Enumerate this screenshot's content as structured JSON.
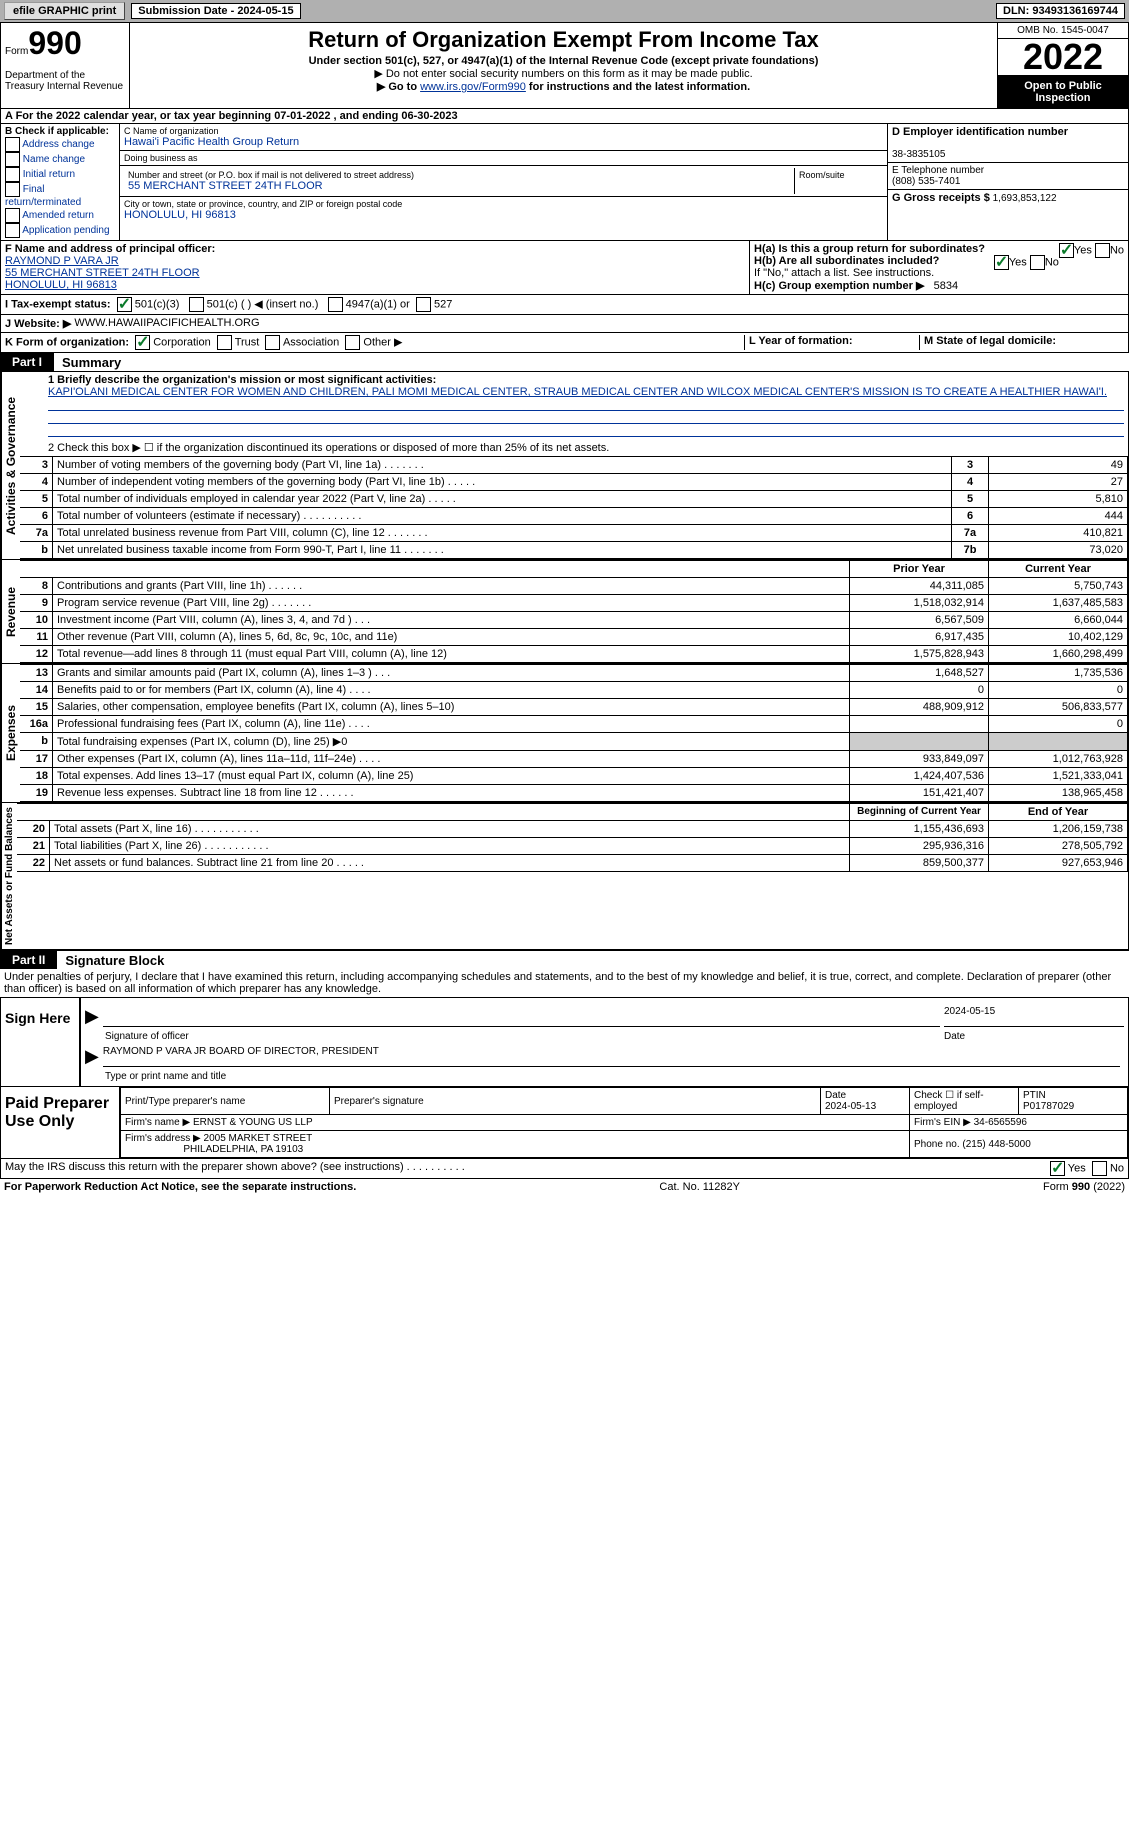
{
  "topbar": {
    "efile": "efile GRAPHIC print",
    "submission_label": "Submission Date - 2024-05-15",
    "dln": "DLN: 93493136169744"
  },
  "header": {
    "form_word": "Form",
    "form_num": "990",
    "dept": "Department of the Treasury\nInternal Revenue",
    "title": "Return of Organization Exempt From Income Tax",
    "subtitle": "Under section 501(c), 527, or 4947(a)(1) of the Internal Revenue Code (except private foundations)",
    "note1": "▶ Do not enter social security numbers on this form as it may be made public.",
    "note2_prefix": "▶ Go to ",
    "note2_link": "www.irs.gov/Form990",
    "note2_suffix": " for instructions and the latest information.",
    "omb": "OMB No. 1545-0047",
    "year": "2022",
    "open": "Open to Public Inspection"
  },
  "row_a": "A For the 2022 calendar year, or tax year beginning 07-01-2022    , and ending 06-30-2023",
  "section_b": {
    "label": "B Check if applicable:",
    "addr_change": "Address change",
    "name_change": "Name change",
    "initial": "Initial return",
    "final": "Final return/terminated",
    "amended": "Amended return",
    "app_pending": "Application pending"
  },
  "section_c": {
    "name_label": "C Name of organization",
    "name": "Hawai'i Pacific Health Group Return",
    "dba_label": "Doing business as",
    "dba": "",
    "addr_label": "Number and street (or P.O. box if mail is not delivered to street address)",
    "addr": "55 MERCHANT STREET 24TH FLOOR",
    "suite_label": "Room/suite",
    "city_label": "City or town, state or province, country, and ZIP or foreign postal code",
    "city": "HONOLULU, HI  96813"
  },
  "section_d": {
    "label": "D Employer identification number",
    "ein": "38-3835105"
  },
  "section_e": {
    "label": "E Telephone number",
    "phone": "(808) 535-7401"
  },
  "section_g": {
    "label": "G Gross receipts $",
    "amount": "1,693,853,122"
  },
  "section_f": {
    "label": "F Name and address of principal officer:",
    "name": "RAYMOND P VARA JR",
    "addr1": "55 MERCHANT STREET 24TH FLOOR",
    "addr2": "HONOLULU, HI  96813"
  },
  "section_h": {
    "ha": "H(a)  Is this a group return for subordinates?",
    "hb": "H(b)  Are all subordinates included?",
    "hb_note": "If \"No,\" attach a list. See instructions.",
    "hc": "H(c)  Group exemption number ▶",
    "hc_val": "5834",
    "yes": "Yes",
    "no": "No"
  },
  "row_i": {
    "label": "I   Tax-exempt status:",
    "c3": "501(c)(3)",
    "c_other": "501(c) (  ) ◀ (insert no.)",
    "a1": "4947(a)(1) or",
    "a527": "527"
  },
  "row_j": {
    "label": "J   Website: ▶",
    "val": "WWW.HAWAIIPACIFICHEALTH.ORG"
  },
  "row_k": {
    "label": "K Form of organization:",
    "corp": "Corporation",
    "trust": "Trust",
    "assoc": "Association",
    "other": "Other ▶",
    "yf_label": "L Year of formation:",
    "yf": "",
    "sd_label": "M State of legal domicile:",
    "sd": ""
  },
  "part1": {
    "tab": "Part I",
    "title": "Summary",
    "line1_label": "1  Briefly describe the organization's mission or most significant activities:",
    "line1_text": "KAPI'OLANI MEDICAL CENTER FOR WOMEN AND CHILDREN, PALI MOMI MEDICAL CENTER, STRAUB MEDICAL CENTER AND WILCOX MEDICAL CENTER'S MISSION IS TO CREATE A HEALTHIER HAWAI'I.",
    "line2": "2   Check this box ▶ ☐ if the organization discontinued its operations or disposed of more than 25% of its net assets.",
    "lines": [
      {
        "n": "3",
        "d": "Number of voting members of the governing body (Part VI, line 1a)   .    .    .    .    .    .    .",
        "b": "3",
        "v": "49"
      },
      {
        "n": "4",
        "d": "Number of independent voting members of the governing body (Part VI, line 1b)  .    .    .    .    .",
        "b": "4",
        "v": "27"
      },
      {
        "n": "5",
        "d": "Total number of individuals employed in calendar year 2022 (Part V, line 2a)   .    .    .    .    .",
        "b": "5",
        "v": "5,810"
      },
      {
        "n": "6",
        "d": "Total number of volunteers (estimate if necessary)    .    .    .    .    .    .    .    .    .    .",
        "b": "6",
        "v": "444"
      },
      {
        "n": "7a",
        "d": "Total unrelated business revenue from Part VIII, column (C), line 12   .    .    .    .    .    .    .",
        "b": "7a",
        "v": "410,821"
      },
      {
        "n": "b",
        "d": "Net unrelated business taxable income from Form 990-T, Part I, line 11  .    .    .    .    .    .    .",
        "b": "7b",
        "v": "73,020"
      }
    ]
  },
  "revenue": {
    "hdr_prior": "Prior Year",
    "hdr_current": "Current Year",
    "rows": [
      {
        "n": "8",
        "d": "Contributions and grants (Part VIII, line 1h)   .    .    .    .    .    .",
        "p": "44,311,085",
        "c": "5,750,743"
      },
      {
        "n": "9",
        "d": "Program service revenue (Part VIII, line 2g)  .    .    .    .    .    .    .",
        "p": "1,518,032,914",
        "c": "1,637,485,583"
      },
      {
        "n": "10",
        "d": "Investment income (Part VIII, column (A), lines 3, 4, and 7d )   .    .    .",
        "p": "6,567,509",
        "c": "6,660,044"
      },
      {
        "n": "11",
        "d": "Other revenue (Part VIII, column (A), lines 5, 6d, 8c, 9c, 10c, and 11e)",
        "p": "6,917,435",
        "c": "10,402,129"
      },
      {
        "n": "12",
        "d": "Total revenue—add lines 8 through 11 (must equal Part VIII, column (A), line 12)",
        "p": "1,575,828,943",
        "c": "1,660,298,499"
      }
    ]
  },
  "expenses": {
    "rows": [
      {
        "n": "13",
        "d": "Grants and similar amounts paid (Part IX, column (A), lines 1–3 )  .    .    .",
        "p": "1,648,527",
        "c": "1,735,536"
      },
      {
        "n": "14",
        "d": "Benefits paid to or for members (Part IX, column (A), line 4)   .    .    .    .",
        "p": "0",
        "c": "0"
      },
      {
        "n": "15",
        "d": "Salaries, other compensation, employee benefits (Part IX, column (A), lines 5–10)",
        "p": "488,909,912",
        "c": "506,833,577"
      },
      {
        "n": "16a",
        "d": "Professional fundraising fees (Part IX, column (A), line 11e)   .    .    .    .",
        "p": "",
        "c": "0"
      },
      {
        "n": "b",
        "d": "Total fundraising expenses (Part IX, column (D), line 25) ▶0",
        "p": "GRAY",
        "c": "GRAY"
      },
      {
        "n": "17",
        "d": "Other expenses (Part IX, column (A), lines 11a–11d, 11f–24e)  .    .    .    .",
        "p": "933,849,097",
        "c": "1,012,763,928"
      },
      {
        "n": "18",
        "d": "Total expenses. Add lines 13–17 (must equal Part IX, column (A), line 25)",
        "p": "1,424,407,536",
        "c": "1,521,333,041"
      },
      {
        "n": "19",
        "d": "Revenue less expenses. Subtract line 18 from line 12 .    .    .    .    .    .",
        "p": "151,421,407",
        "c": "138,965,458"
      }
    ]
  },
  "netassets": {
    "hdr_begin": "Beginning of Current Year",
    "hdr_end": "End of Year",
    "rows": [
      {
        "n": "20",
        "d": "Total assets (Part X, line 16)  .    .    .    .    .    .    .    .    .    .    .",
        "p": "1,155,436,693",
        "c": "1,206,159,738"
      },
      {
        "n": "21",
        "d": "Total liabilities (Part X, line 26) .    .    .    .    .    .    .    .    .    .    .",
        "p": "295,936,316",
        "c": "278,505,792"
      },
      {
        "n": "22",
        "d": "Net assets or fund balances. Subtract line 21 from line 20 .    .    .    .    .",
        "p": "859,500,377",
        "c": "927,653,946"
      }
    ]
  },
  "part2": {
    "tab": "Part II",
    "title": "Signature Block",
    "penalty": "Under penalties of perjury, I declare that I have examined this return, including accompanying schedules and statements, and to the best of my knowledge and belief, it is true, correct, and complete. Declaration of preparer (other than officer) is based on all information of which preparer has any knowledge."
  },
  "sign": {
    "label": "Sign Here",
    "sig_label": "Signature of officer",
    "date": "2024-05-15",
    "date_label": "Date",
    "name": "RAYMOND P VARA JR  BOARD OF DIRECTOR, PRESIDENT",
    "name_label": "Type or print name and title"
  },
  "prep": {
    "label": "Paid Preparer Use Only",
    "name_hdr": "Print/Type preparer's name",
    "sig_hdr": "Preparer's signature",
    "date_hdr": "Date",
    "date": "2024-05-13",
    "check_label": "Check ☐ if self-employed",
    "ptin_hdr": "PTIN",
    "ptin": "P01787029",
    "firm_name_label": "Firm's name     ▶",
    "firm_name": "ERNST & YOUNG US LLP",
    "firm_ein_label": "Firm's EIN ▶",
    "firm_ein": "34-6565596",
    "firm_addr_label": "Firm's address ▶",
    "firm_addr1": "2005 MARKET STREET",
    "firm_addr2": "PHILADELPHIA, PA  19103",
    "phone_label": "Phone no.",
    "phone": "(215) 448-5000"
  },
  "discuss": {
    "q": "May the IRS discuss this return with the preparer shown above? (see instructions)   .    .    .    .    .    .    .    .    .    .",
    "yes": "Yes",
    "no": "No"
  },
  "footer": {
    "left": "For Paperwork Reduction Act Notice, see the separate instructions.",
    "mid": "Cat. No. 11282Y",
    "right": "Form 990 (2022)"
  },
  "sidelabels": {
    "activities": "Activities & Governance",
    "revenue": "Revenue",
    "expenses": "Expenses",
    "netassets": "Net Assets or Fund Balances"
  }
}
